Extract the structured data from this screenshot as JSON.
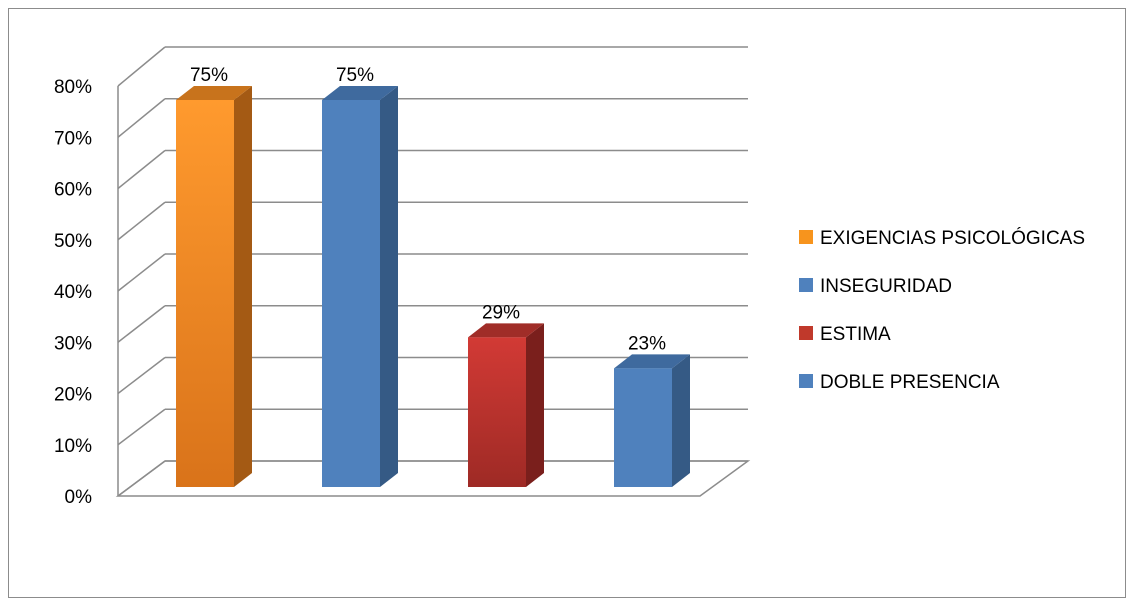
{
  "chart_data": {
    "type": "bar",
    "categories": [
      "EXIGENCIAS PSICOLÓGICAS",
      "INSEGURIDAD",
      "ESTIMA",
      "DOBLE PRESENCIA"
    ],
    "values": [
      75,
      75,
      29,
      23
    ],
    "data_labels": [
      "75%",
      "75%",
      "29%",
      "23%"
    ],
    "colors": [
      "#f7941d",
      "#4f81bd",
      "#c0392b",
      "#4f81bd"
    ],
    "ylim": [
      0,
      80
    ],
    "ytick_labels": [
      "0%",
      "10%",
      "20%",
      "30%",
      "40%",
      "50%",
      "60%",
      "70%",
      "80%"
    ],
    "grid": true,
    "legend_position": "right",
    "style": "3d"
  }
}
